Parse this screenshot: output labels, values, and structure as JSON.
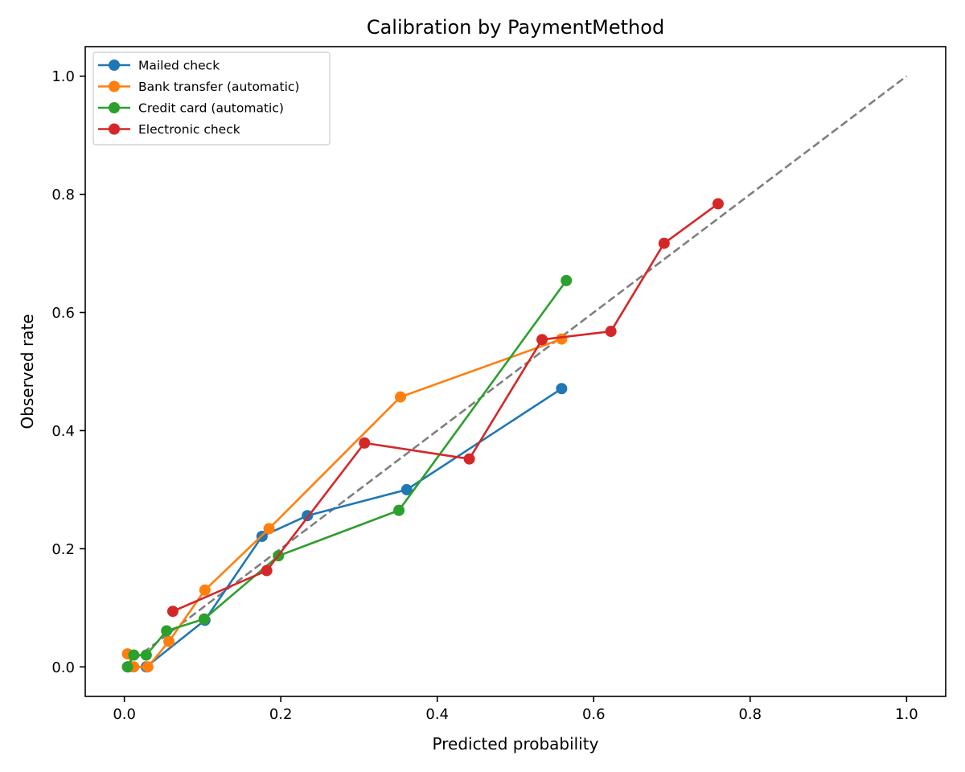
{
  "chart_data": {
    "type": "line",
    "title": "Calibration by PaymentMethod",
    "xlabel": "Predicted probability",
    "ylabel": "Observed rate",
    "xlim": [
      -0.05,
      1.05
    ],
    "ylim": [
      -0.05,
      1.05
    ],
    "xticks": [
      0.0,
      0.2,
      0.4,
      0.6,
      0.8,
      1.0
    ],
    "yticks": [
      0.0,
      0.2,
      0.4,
      0.6,
      0.8,
      1.0
    ],
    "xtick_labels": [
      "0.0",
      "0.2",
      "0.4",
      "0.6",
      "0.8",
      "1.0"
    ],
    "ytick_labels": [
      "0.0",
      "0.2",
      "0.4",
      "0.6",
      "0.8",
      "1.0"
    ],
    "grid": false,
    "legend_position": "top-left",
    "reference_line": {
      "x": [
        0.0,
        1.0
      ],
      "y": [
        0.0,
        1.0
      ],
      "style": "dashed",
      "color": "#7f7f7f"
    },
    "series": [
      {
        "name": "Mailed check",
        "color": "#1f77b4",
        "x": [
          0.005,
          0.028,
          0.103,
          0.176,
          0.234,
          0.361,
          0.559
        ],
        "y": [
          0.0,
          0.0,
          0.079,
          0.221,
          0.256,
          0.3,
          0.471
        ]
      },
      {
        "name": "Bank transfer (automatic)",
        "color": "#ff7f0e",
        "x": [
          0.004,
          0.012,
          0.03,
          0.057,
          0.103,
          0.185,
          0.353,
          0.559
        ],
        "y": [
          0.022,
          0.0,
          0.0,
          0.043,
          0.13,
          0.234,
          0.457,
          0.555
        ]
      },
      {
        "name": "Credit card (automatic)",
        "color": "#2ca02c",
        "x": [
          0.004,
          0.012,
          0.028,
          0.054,
          0.102,
          0.197,
          0.351,
          0.565
        ],
        "y": [
          0.0,
          0.02,
          0.02,
          0.061,
          0.081,
          0.188,
          0.265,
          0.654
        ]
      },
      {
        "name": "Electronic check",
        "color": "#d62728",
        "x": [
          0.062,
          0.182,
          0.307,
          0.441,
          0.534,
          0.622,
          0.69,
          0.759
        ],
        "y": [
          0.094,
          0.163,
          0.379,
          0.352,
          0.554,
          0.568,
          0.717,
          0.784
        ]
      }
    ]
  }
}
